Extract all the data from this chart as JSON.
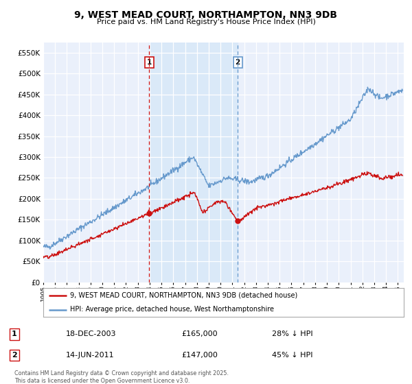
{
  "title": "9, WEST MEAD COURT, NORTHAMPTON, NN3 9DB",
  "subtitle": "Price paid vs. HM Land Registry's House Price Index (HPI)",
  "ytick_values": [
    0,
    50000,
    100000,
    150000,
    200000,
    250000,
    300000,
    350000,
    400000,
    450000,
    500000,
    550000
  ],
  "ylim": [
    0,
    575000
  ],
  "background_color": "#ffffff",
  "plot_bg_color": "#eaf0fb",
  "grid_color": "#ffffff",
  "hpi_color": "#6699cc",
  "price_color": "#cc1111",
  "marker1_date_x": 2003.96,
  "marker2_date_x": 2011.45,
  "marker1_price": 165000,
  "marker2_price": 147000,
  "marker1_label": "1",
  "marker2_label": "2",
  "legend_line1": "9, WEST MEAD COURT, NORTHAMPTON, NN3 9DB (detached house)",
  "legend_line2": "HPI: Average price, detached house, West Northamptonshire",
  "table_row1": [
    "1",
    "18-DEC-2003",
    "£165,000",
    "28% ↓ HPI"
  ],
  "table_row2": [
    "2",
    "14-JUN-2011",
    "£147,000",
    "45% ↓ HPI"
  ],
  "copyright_text": "Contains HM Land Registry data © Crown copyright and database right 2025.\nThis data is licensed under the Open Government Licence v3.0.",
  "xmin": 1995.0,
  "xmax": 2025.5
}
